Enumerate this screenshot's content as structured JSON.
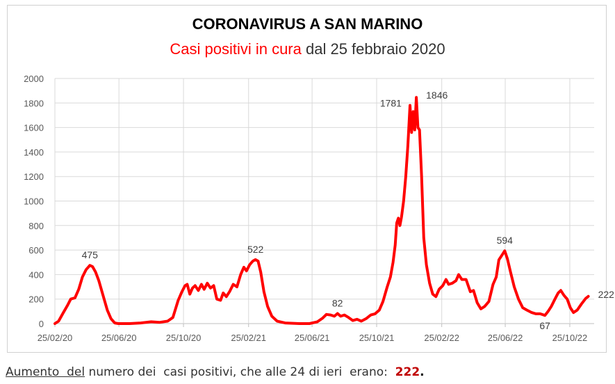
{
  "title": "CORONAVIRUS A SAN MARINO",
  "subtitle": {
    "red_part": "Casi positivi  in cura",
    "rest": "dal 25 febbraio 2020"
  },
  "footer": {
    "underlined": "Aumento  del",
    "text": " numero dei  casi positivi, che alle 24 di ieri  erano:  ",
    "value": "222",
    "end": "."
  },
  "chart_data": {
    "type": "line",
    "line_color": "#ff0000",
    "grid": true,
    "ylim": [
      0,
      2000
    ],
    "xlim": [
      "2020-02-25",
      "2022-12-10"
    ],
    "y_ticks": [
      0,
      200,
      400,
      600,
      800,
      1000,
      1200,
      1400,
      1600,
      1800,
      2000
    ],
    "x_ticks": [
      {
        "date": "2020-02-25",
        "label": "25/02/20"
      },
      {
        "date": "2020-06-25",
        "label": "25/06/20"
      },
      {
        "date": "2020-10-25",
        "label": "25/10/20"
      },
      {
        "date": "2021-02-25",
        "label": "25/02/21"
      },
      {
        "date": "2021-06-25",
        "label": "25/06/21"
      },
      {
        "date": "2021-10-25",
        "label": "25/10/21"
      },
      {
        "date": "2022-02-25",
        "label": "25/02/22"
      },
      {
        "date": "2022-06-25",
        "label": "25/06/22"
      },
      {
        "date": "2022-10-25",
        "label": "25/10/22"
      }
    ],
    "series": [
      {
        "points": [
          [
            "2020-02-25",
            0
          ],
          [
            "2020-03-03",
            20
          ],
          [
            "2020-03-12",
            90
          ],
          [
            "2020-03-20",
            150
          ],
          [
            "2020-03-26",
            200
          ],
          [
            "2020-04-03",
            210
          ],
          [
            "2020-04-10",
            280
          ],
          [
            "2020-04-17",
            380
          ],
          [
            "2020-04-24",
            440
          ],
          [
            "2020-05-01",
            475
          ],
          [
            "2020-05-06",
            465
          ],
          [
            "2020-05-12",
            420
          ],
          [
            "2020-05-18",
            350
          ],
          [
            "2020-05-26",
            230
          ],
          [
            "2020-06-03",
            110
          ],
          [
            "2020-06-10",
            40
          ],
          [
            "2020-06-17",
            5
          ],
          [
            "2020-06-24",
            0
          ],
          [
            "2020-07-15",
            0
          ],
          [
            "2020-08-05",
            5
          ],
          [
            "2020-08-25",
            15
          ],
          [
            "2020-09-10",
            10
          ],
          [
            "2020-09-25",
            20
          ],
          [
            "2020-10-05",
            50
          ],
          [
            "2020-10-15",
            190
          ],
          [
            "2020-10-22",
            260
          ],
          [
            "2020-10-28",
            310
          ],
          [
            "2020-11-01",
            320
          ],
          [
            "2020-11-06",
            240
          ],
          [
            "2020-11-11",
            290
          ],
          [
            "2020-11-16",
            310
          ],
          [
            "2020-11-22",
            270
          ],
          [
            "2020-11-28",
            320
          ],
          [
            "2020-12-03",
            280
          ],
          [
            "2020-12-09",
            330
          ],
          [
            "2020-12-15",
            290
          ],
          [
            "2020-12-21",
            310
          ],
          [
            "2020-12-27",
            200
          ],
          [
            "2021-01-03",
            190
          ],
          [
            "2021-01-08",
            250
          ],
          [
            "2021-01-14",
            220
          ],
          [
            "2021-01-20",
            260
          ],
          [
            "2021-01-27",
            320
          ],
          [
            "2021-02-03",
            300
          ],
          [
            "2021-02-10",
            400
          ],
          [
            "2021-02-16",
            460
          ],
          [
            "2021-02-21",
            430
          ],
          [
            "2021-02-27",
            480
          ],
          [
            "2021-03-05",
            510
          ],
          [
            "2021-03-10",
            522
          ],
          [
            "2021-03-15",
            510
          ],
          [
            "2021-03-20",
            420
          ],
          [
            "2021-03-26",
            260
          ],
          [
            "2021-04-02",
            140
          ],
          [
            "2021-04-10",
            60
          ],
          [
            "2021-04-20",
            20
          ],
          [
            "2021-05-05",
            5
          ],
          [
            "2021-06-01",
            0
          ],
          [
            "2021-06-20",
            0
          ],
          [
            "2021-07-05",
            15
          ],
          [
            "2021-07-15",
            45
          ],
          [
            "2021-07-22",
            75
          ],
          [
            "2021-07-30",
            70
          ],
          [
            "2021-08-06",
            60
          ],
          [
            "2021-08-12",
            82
          ],
          [
            "2021-08-18",
            60
          ],
          [
            "2021-08-25",
            70
          ],
          [
            "2021-09-02",
            50
          ],
          [
            "2021-09-10",
            25
          ],
          [
            "2021-09-18",
            35
          ],
          [
            "2021-09-26",
            20
          ],
          [
            "2021-10-05",
            40
          ],
          [
            "2021-10-14",
            70
          ],
          [
            "2021-10-22",
            80
          ],
          [
            "2021-10-30",
            110
          ],
          [
            "2021-11-06",
            180
          ],
          [
            "2021-11-14",
            300
          ],
          [
            "2021-11-20",
            380
          ],
          [
            "2021-11-25",
            500
          ],
          [
            "2021-11-29",
            640
          ],
          [
            "2021-12-02",
            820
          ],
          [
            "2021-12-05",
            860
          ],
          [
            "2021-12-08",
            800
          ],
          [
            "2021-12-11",
            870
          ],
          [
            "2021-12-15",
            1000
          ],
          [
            "2021-12-19",
            1200
          ],
          [
            "2021-12-23",
            1450
          ],
          [
            "2021-12-27",
            1781
          ],
          [
            "2021-12-30",
            1560
          ],
          [
            "2022-01-02",
            1730
          ],
          [
            "2022-01-05",
            1580
          ],
          [
            "2022-01-08",
            1846
          ],
          [
            "2022-01-11",
            1600
          ],
          [
            "2022-01-14",
            1580
          ],
          [
            "2022-01-18",
            1200
          ],
          [
            "2022-01-22",
            700
          ],
          [
            "2022-01-27",
            480
          ],
          [
            "2022-02-02",
            330
          ],
          [
            "2022-02-08",
            240
          ],
          [
            "2022-02-14",
            220
          ],
          [
            "2022-02-20",
            280
          ],
          [
            "2022-02-27",
            310
          ],
          [
            "2022-03-05",
            360
          ],
          [
            "2022-03-10",
            320
          ],
          [
            "2022-03-17",
            330
          ],
          [
            "2022-03-24",
            350
          ],
          [
            "2022-03-29",
            400
          ],
          [
            "2022-04-04",
            360
          ],
          [
            "2022-04-12",
            360
          ],
          [
            "2022-04-20",
            260
          ],
          [
            "2022-04-26",
            270
          ],
          [
            "2022-05-03",
            170
          ],
          [
            "2022-05-10",
            120
          ],
          [
            "2022-05-17",
            140
          ],
          [
            "2022-05-25",
            180
          ],
          [
            "2022-06-02",
            320
          ],
          [
            "2022-06-08",
            380
          ],
          [
            "2022-06-13",
            520
          ],
          [
            "2022-06-19",
            560
          ],
          [
            "2022-06-24",
            594
          ],
          [
            "2022-06-29",
            530
          ],
          [
            "2022-07-05",
            420
          ],
          [
            "2022-07-12",
            300
          ],
          [
            "2022-07-20",
            200
          ],
          [
            "2022-07-28",
            130
          ],
          [
            "2022-08-05",
            110
          ],
          [
            "2022-08-14",
            90
          ],
          [
            "2022-08-22",
            80
          ],
          [
            "2022-08-30",
            80
          ],
          [
            "2022-09-08",
            67
          ],
          [
            "2022-09-14",
            100
          ],
          [
            "2022-09-20",
            140
          ],
          [
            "2022-09-27",
            200
          ],
          [
            "2022-10-03",
            250
          ],
          [
            "2022-10-08",
            270
          ],
          [
            "2022-10-14",
            230
          ],
          [
            "2022-10-20",
            200
          ],
          [
            "2022-10-26",
            130
          ],
          [
            "2022-11-01",
            90
          ],
          [
            "2022-11-08",
            110
          ],
          [
            "2022-11-16",
            160
          ],
          [
            "2022-11-24",
            205
          ],
          [
            "2022-11-29",
            222
          ]
        ]
      }
    ],
    "annotations": [
      {
        "date": "2020-05-01",
        "value": 475,
        "label": "475",
        "pos": "above"
      },
      {
        "date": "2021-03-10",
        "value": 522,
        "label": "522",
        "pos": "above"
      },
      {
        "date": "2021-08-12",
        "value": 82,
        "label": "82",
        "pos": "above"
      },
      {
        "date": "2021-12-27",
        "value": 1781,
        "label": "1781",
        "pos": "left"
      },
      {
        "date": "2022-01-08",
        "value": 1846,
        "label": "1846",
        "pos": "right"
      },
      {
        "date": "2022-06-24",
        "value": 594,
        "label": "594",
        "pos": "above"
      },
      {
        "date": "2022-09-08",
        "value": 67,
        "label": "67",
        "pos": "below"
      },
      {
        "date": "2022-11-29",
        "value": 222,
        "label": "222",
        "pos": "right"
      }
    ]
  }
}
